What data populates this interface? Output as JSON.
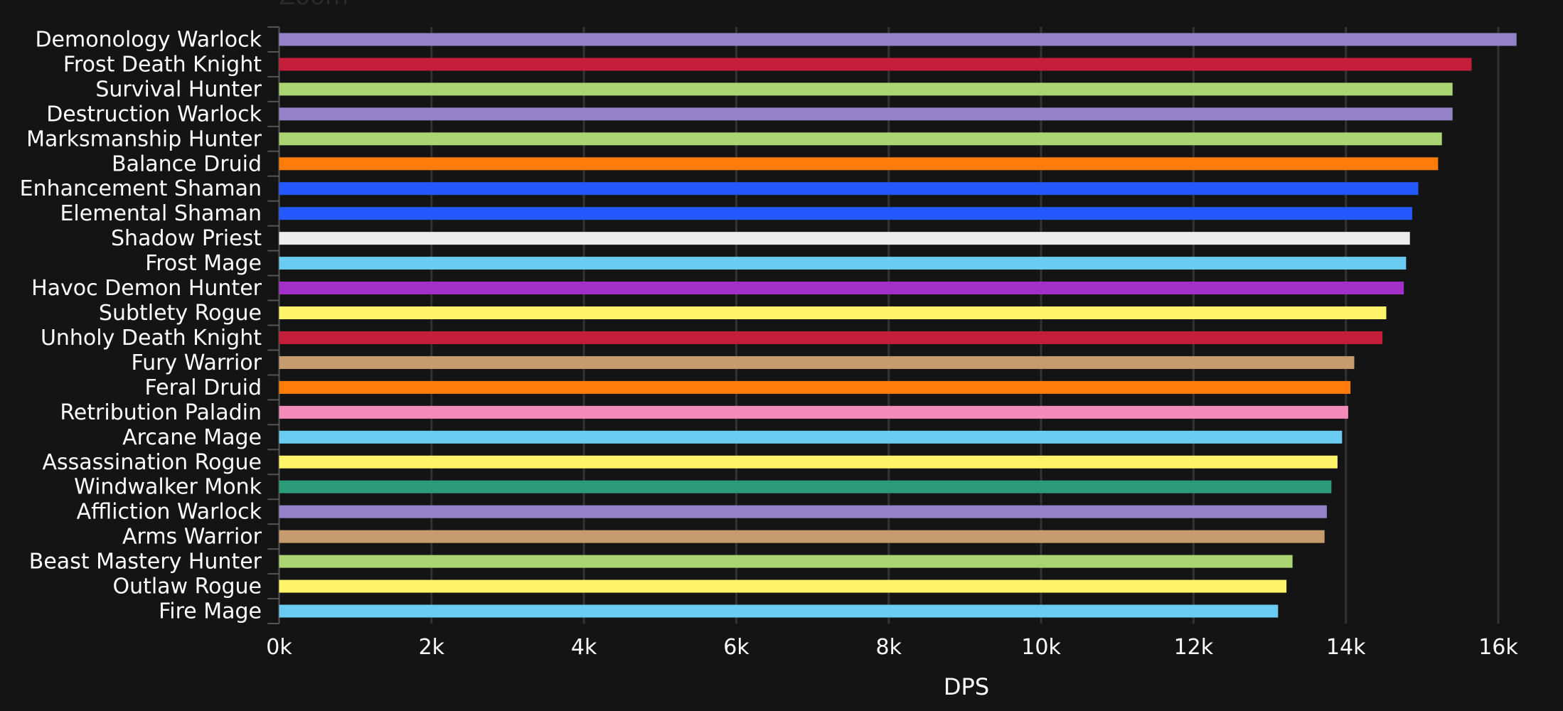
{
  "zoom_label": "Zoom",
  "chart_data": {
    "type": "bar",
    "orientation": "horizontal",
    "title": "",
    "xlabel": "DPS",
    "ylabel": "",
    "xlim": [
      0,
      16500
    ],
    "x_ticks": [
      "0k",
      "2k",
      "4k",
      "6k",
      "8k",
      "10k",
      "12k",
      "14k",
      "16k"
    ],
    "x_tick_values": [
      0,
      2000,
      4000,
      6000,
      8000,
      10000,
      12000,
      14000,
      16000
    ],
    "grid": "vertical",
    "legend": "none",
    "background": "#141414",
    "categories": [
      "Demonology Warlock",
      "Frost Death Knight",
      "Survival Hunter",
      "Destruction Warlock",
      "Marksmanship Hunter",
      "Balance Druid",
      "Enhancement Shaman",
      "Elemental Shaman",
      "Shadow Priest",
      "Frost Mage",
      "Havoc Demon Hunter",
      "Subtlety Rogue",
      "Unholy Death Knight",
      "Fury Warrior",
      "Feral Druid",
      "Retribution Paladin",
      "Arcane Mage",
      "Assassination Rogue",
      "Windwalker Monk",
      "Affliction Warlock",
      "Arms Warrior",
      "Beast Mastery Hunter",
      "Outlaw Rogue",
      "Fire Mage"
    ],
    "values": [
      16240,
      15650,
      15400,
      15400,
      15260,
      15210,
      14950,
      14870,
      14840,
      14790,
      14760,
      14530,
      14480,
      14110,
      14060,
      14030,
      13950,
      13890,
      13810,
      13750,
      13720,
      13300,
      13220,
      13110
    ],
    "colors": [
      "#9482c9",
      "#c41e3a",
      "#abd473",
      "#9482c9",
      "#abd473",
      "#ff7c0a",
      "#2459ff",
      "#2459ff",
      "#ececec",
      "#69ccf0",
      "#a330c9",
      "#fff468",
      "#c41e3a",
      "#c69b6d",
      "#ff7c0a",
      "#f48cba",
      "#69ccf0",
      "#fff468",
      "#2c9b78",
      "#9482c9",
      "#c69b6d",
      "#abd473",
      "#fff468",
      "#69ccf0"
    ]
  }
}
